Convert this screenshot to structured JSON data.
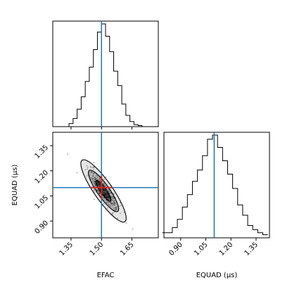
{
  "chart_data": {
    "type": "corner",
    "parameters": [
      {
        "name": "EFAC",
        "axis_label": "EFAC",
        "range": [
          1.26,
          1.78
        ],
        "ticks": [
          1.35,
          1.5,
          1.65
        ],
        "tick_labels": [
          "1.35",
          "1.50",
          "1.65"
        ],
        "truth": 1.5
      },
      {
        "name": "EQUAD",
        "axis_label": "EQUAD (μs)",
        "range": [
          0.8,
          1.43
        ],
        "ticks": [
          0.9,
          1.05,
          1.2,
          1.35
        ],
        "tick_labels": [
          "0.90",
          "1.05",
          "1.20",
          "1.35"
        ],
        "truth": 1.1
      }
    ],
    "marginal_histograms": [
      {
        "parameter": "EFAC",
        "x": [
          1.27,
          1.29,
          1.31,
          1.33,
          1.35,
          1.37,
          1.39,
          1.41,
          1.43,
          1.45,
          1.47,
          1.49,
          1.51,
          1.53,
          1.55,
          1.57,
          1.59,
          1.61,
          1.63,
          1.65,
          1.67,
          1.69,
          1.71,
          1.73,
          1.75,
          1.77
        ],
        "counts": [
          0,
          0,
          0,
          0,
          3,
          8,
          17,
          29,
          44,
          58,
          75,
          92,
          100,
          88,
          73,
          54,
          40,
          22,
          11,
          5,
          2,
          1,
          0,
          0,
          0,
          0
        ]
      },
      {
        "parameter": "EQUAD",
        "x": [
          0.805,
          0.835,
          0.865,
          0.895,
          0.925,
          0.955,
          0.985,
          1.015,
          1.045,
          1.075,
          1.105,
          1.135,
          1.165,
          1.195,
          1.225,
          1.255,
          1.285,
          1.315,
          1.345,
          1.375,
          1.405
        ],
        "counts": [
          5,
          5,
          10,
          18,
          30,
          42,
          55,
          66,
          80,
          96,
          100,
          88,
          75,
          62,
          48,
          32,
          22,
          12,
          8,
          5,
          3
        ]
      }
    ],
    "joint": {
      "x_parameter": "EFAC",
      "y_parameter": "EQUAD",
      "center": [
        1.51,
        1.08
      ],
      "contour_levels": [
        "39%",
        "86%",
        "99%"
      ],
      "truth_point": [
        1.5,
        1.1
      ],
      "point_estimate": [
        1.5,
        1.1
      ]
    },
    "colors": {
      "histogram": "#000000",
      "truth_line": "#1f77b4",
      "point_estimate": "#d62728",
      "density": "#000000"
    },
    "grid": false
  }
}
